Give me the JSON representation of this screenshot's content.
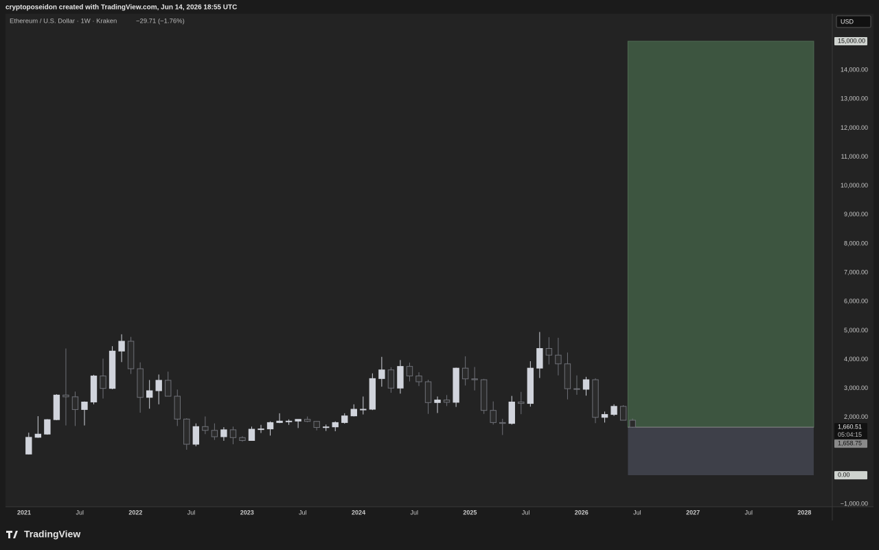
{
  "chart_data": {
    "type": "candlestick",
    "source": "cryptoposeidon created with TradingView.com, Jun 14, 2026 18:55 UTC",
    "title": "Ethereum / U.S. Dollar · 1W · Kraken",
    "change": "−29.71 (−1.76%)",
    "currency": "USD",
    "brand": "TradingView",
    "up_color": "#d1d4dc",
    "down_color": "#6f7178",
    "x": [
      "2021-01",
      "2021-02",
      "2021-03",
      "2021-04",
      "2021-05",
      "2021-06",
      "2021-07",
      "2021-08",
      "2021-09",
      "2021-10",
      "2021-11",
      "2021-12",
      "2022-01",
      "2022-02",
      "2022-03",
      "2022-04",
      "2022-05",
      "2022-06",
      "2022-07",
      "2022-08",
      "2022-09",
      "2022-10",
      "2022-11",
      "2022-12",
      "2023-01",
      "2023-02",
      "2023-03",
      "2023-04",
      "2023-05",
      "2023-06",
      "2023-07",
      "2023-08",
      "2023-09",
      "2023-10",
      "2023-11",
      "2023-12",
      "2024-01",
      "2024-02",
      "2024-03",
      "2024-04",
      "2024-05",
      "2024-06",
      "2024-07",
      "2024-08",
      "2024-09",
      "2024-10",
      "2024-11",
      "2024-12",
      "2025-01",
      "2025-02",
      "2025-03",
      "2025-04",
      "2025-05",
      "2025-06",
      "2025-07",
      "2025-08",
      "2025-09",
      "2025-10",
      "2025-11",
      "2025-12",
      "2026-01",
      "2026-02",
      "2026-03",
      "2026-04",
      "2026-05",
      "2026-06"
    ],
    "open": [
      730,
      1310,
      1420,
      1920,
      2770,
      2710,
      2270,
      2530,
      3430,
      3000,
      4290,
      4630,
      3680,
      2690,
      2920,
      3280,
      2730,
      1940,
      1070,
      1680,
      1550,
      1330,
      1570,
      1300,
      1200,
      1590,
      1600,
      1820,
      1870,
      1870,
      1930,
      1860,
      1650,
      1670,
      1820,
      2050,
      2280,
      2280,
      3340,
      3640,
      3010,
      3760,
      3430,
      3230,
      2510,
      2600,
      2520,
      3700,
      3330,
      3300,
      2240,
      1820,
      1790,
      2530,
      2480,
      3700,
      4380,
      4150,
      3850,
      2990,
      2970,
      3300,
      2000,
      2100,
      2380,
      1900
    ],
    "high": [
      1470,
      2040,
      1940,
      2800,
      4380,
      2890,
      2550,
      3470,
      4030,
      4460,
      4870,
      4780,
      3900,
      3290,
      3480,
      3580,
      2960,
      1970,
      1790,
      2030,
      1790,
      1660,
      1680,
      1350,
      1680,
      1740,
      1860,
      2140,
      1930,
      1930,
      2030,
      1870,
      1750,
      1860,
      2140,
      2450,
      2720,
      3520,
      4090,
      3730,
      3980,
      3890,
      3560,
      3300,
      2720,
      2770,
      3720,
      4110,
      3740,
      3330,
      2550,
      1950,
      2740,
      2880,
      3940,
      4950,
      4770,
      4750,
      4240,
      3450,
      3400,
      3350,
      2200,
      2450,
      2420,
      1960
    ],
    "low": [
      715,
      1290,
      1400,
      1900,
      1720,
      1700,
      1720,
      2450,
      2650,
      2970,
      3910,
      3500,
      2160,
      2300,
      2450,
      2720,
      1700,
      880,
      1000,
      1420,
      1220,
      1190,
      1070,
      1160,
      1190,
      1460,
      1370,
      1800,
      1740,
      1630,
      1830,
      1550,
      1530,
      1520,
      1780,
      2030,
      2100,
      2250,
      3060,
      2850,
      2820,
      3240,
      3080,
      2120,
      2150,
      2390,
      2360,
      3100,
      2930,
      2120,
      1750,
      1390,
      1750,
      2110,
      2370,
      3360,
      3830,
      3450,
      2620,
      2780,
      2750,
      1800,
      1820,
      2050,
      1900,
      1640
    ],
    "close": [
      1310,
      1420,
      1920,
      2770,
      2710,
      2270,
      2530,
      3430,
      3000,
      4290,
      4630,
      3680,
      2690,
      2920,
      3280,
      2730,
      1940,
      1070,
      1680,
      1550,
      1330,
      1570,
      1300,
      1200,
      1590,
      1600,
      1820,
      1870,
      1870,
      1930,
      1860,
      1650,
      1670,
      1820,
      2050,
      2280,
      2280,
      3340,
      3640,
      3010,
      3760,
      3430,
      3230,
      2510,
      2600,
      2520,
      3700,
      3330,
      3300,
      2240,
      1820,
      1790,
      2530,
      2480,
      3700,
      4380,
      4150,
      3850,
      2990,
      2970,
      3300,
      2000,
      2100,
      2380,
      1900,
      1660.51
    ],
    "xlim": [
      "2020-11",
      "2028-04"
    ],
    "xticks": [
      {
        "value": "2021-01",
        "label": "2021"
      },
      {
        "value": "2021-07",
        "label": "Jul"
      },
      {
        "value": "2022-01",
        "label": "2022"
      },
      {
        "value": "2022-07",
        "label": "Jul"
      },
      {
        "value": "2023-01",
        "label": "2023"
      },
      {
        "value": "2023-07",
        "label": "Jul"
      },
      {
        "value": "2024-01",
        "label": "2024"
      },
      {
        "value": "2024-07",
        "label": "Jul"
      },
      {
        "value": "2025-01",
        "label": "2025"
      },
      {
        "value": "2025-07",
        "label": "Jul"
      },
      {
        "value": "2026-01",
        "label": "2026"
      },
      {
        "value": "2026-07",
        "label": "Jul"
      },
      {
        "value": "2027-01",
        "label": "2027"
      },
      {
        "value": "2027-07",
        "label": "Jul"
      },
      {
        "value": "2028-01",
        "label": "2028"
      }
    ],
    "ylim": [
      -1090,
      15950
    ],
    "yticks": [
      {
        "value": -1000,
        "label": "−1,000.00"
      },
      {
        "value": 2000,
        "label": "2,000.00"
      },
      {
        "value": 3000,
        "label": "3,000.00"
      },
      {
        "value": 4000,
        "label": "4,000.00"
      },
      {
        "value": 5000,
        "label": "5,000.00"
      },
      {
        "value": 6000,
        "label": "6,000.00"
      },
      {
        "value": 7000,
        "label": "7,000.00"
      },
      {
        "value": 8000,
        "label": "8,000.00"
      },
      {
        "value": 9000,
        "label": "9,000.00"
      },
      {
        "value": 10000,
        "label": "10,000.00"
      },
      {
        "value": 11000,
        "label": "11,000.00"
      },
      {
        "value": 12000,
        "label": "12,000.00"
      },
      {
        "value": 13000,
        "label": "13,000.00"
      },
      {
        "value": 14000,
        "label": "14,000.00"
      }
    ],
    "price_labels": [
      {
        "value": 15000,
        "label": "15,000.00"
      },
      {
        "value": 1660.51,
        "label": "1,660.51"
      },
      {
        "value": 1658.75,
        "label": "1,658.75"
      },
      {
        "value": 0,
        "label": "0.00"
      }
    ],
    "countdown": "05:04:15",
    "position": {
      "x": [
        "2026-06",
        "2028-02"
      ],
      "target": 15000,
      "entry": 1658.75,
      "stop": 0,
      "profit_color": "#3d5540",
      "loss_color": "#3e4049"
    }
  }
}
